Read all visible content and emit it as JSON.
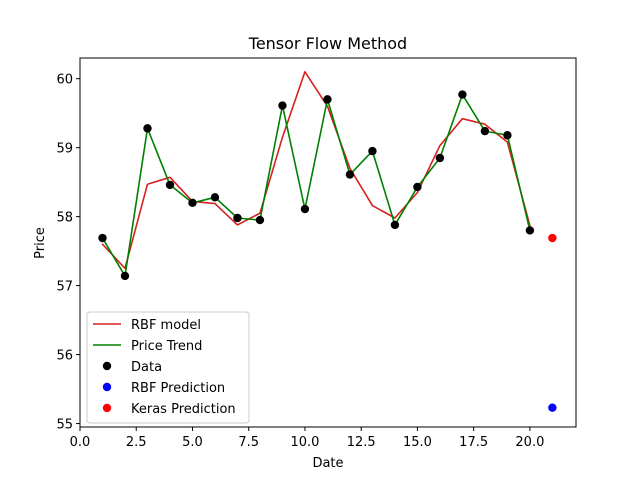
{
  "chart_data": {
    "type": "line",
    "title": "Tensor Flow Method",
    "xlabel": "Date",
    "ylabel": "Price",
    "xlim": [
      0,
      22.05
    ],
    "ylim": [
      54.95,
      60.3
    ],
    "grid": false,
    "legend_placement": "lower-left",
    "x_ticks": [
      0.0,
      2.5,
      5.0,
      7.5,
      10.0,
      12.5,
      15.0,
      17.5,
      20.0
    ],
    "x_tick_labels": [
      "0.0",
      "2.5",
      "5.0",
      "7.5",
      "10.0",
      "12.5",
      "15.0",
      "17.5",
      "20.0"
    ],
    "y_ticks": [
      55,
      56,
      57,
      58,
      59,
      60
    ],
    "y_tick_labels": [
      "55",
      "56",
      "57",
      "58",
      "59",
      "60"
    ],
    "series": [
      {
        "name": "RBF model",
        "kind": "line",
        "color": "#d62020",
        "x": [
          1,
          2,
          3,
          4,
          5,
          6,
          7,
          8,
          9,
          10,
          11,
          12,
          13,
          14,
          15,
          16,
          17,
          18,
          19,
          20
        ],
        "y": [
          57.6,
          57.25,
          58.47,
          58.57,
          58.22,
          58.19,
          57.88,
          58.05,
          59.15,
          60.1,
          59.6,
          58.7,
          58.16,
          57.98,
          58.35,
          59.03,
          59.42,
          59.34,
          59.08,
          57.87
        ]
      },
      {
        "name": "Price Trend",
        "kind": "line",
        "color": "#008000",
        "x": [
          1,
          2,
          3,
          4,
          5,
          6,
          7,
          8,
          9,
          10,
          11,
          12,
          13,
          14,
          15,
          16,
          17,
          18,
          19,
          20
        ],
        "y": [
          57.69,
          57.14,
          59.28,
          58.46,
          58.2,
          58.28,
          57.98,
          57.95,
          59.61,
          58.11,
          59.7,
          58.61,
          58.95,
          57.88,
          58.43,
          58.85,
          59.77,
          59.24,
          59.18,
          57.8
        ]
      },
      {
        "name": "Data",
        "kind": "scatter",
        "color": "#000000",
        "x": [
          1,
          2,
          3,
          4,
          5,
          6,
          7,
          8,
          9,
          10,
          11,
          12,
          13,
          14,
          15,
          16,
          17,
          18,
          19,
          20
        ],
        "y": [
          57.69,
          57.14,
          59.28,
          58.46,
          58.2,
          58.28,
          57.98,
          57.95,
          59.61,
          58.11,
          59.7,
          58.61,
          58.95,
          57.88,
          58.43,
          58.85,
          59.77,
          59.24,
          59.18,
          57.8
        ]
      },
      {
        "name": "RBF Prediction",
        "kind": "scatter",
        "color": "#0000ff",
        "x": [
          21
        ],
        "y": [
          55.23
        ]
      },
      {
        "name": "Keras Prediction",
        "kind": "scatter",
        "color": "#ff0000",
        "x": [
          21
        ],
        "y": [
          57.69
        ]
      }
    ]
  }
}
